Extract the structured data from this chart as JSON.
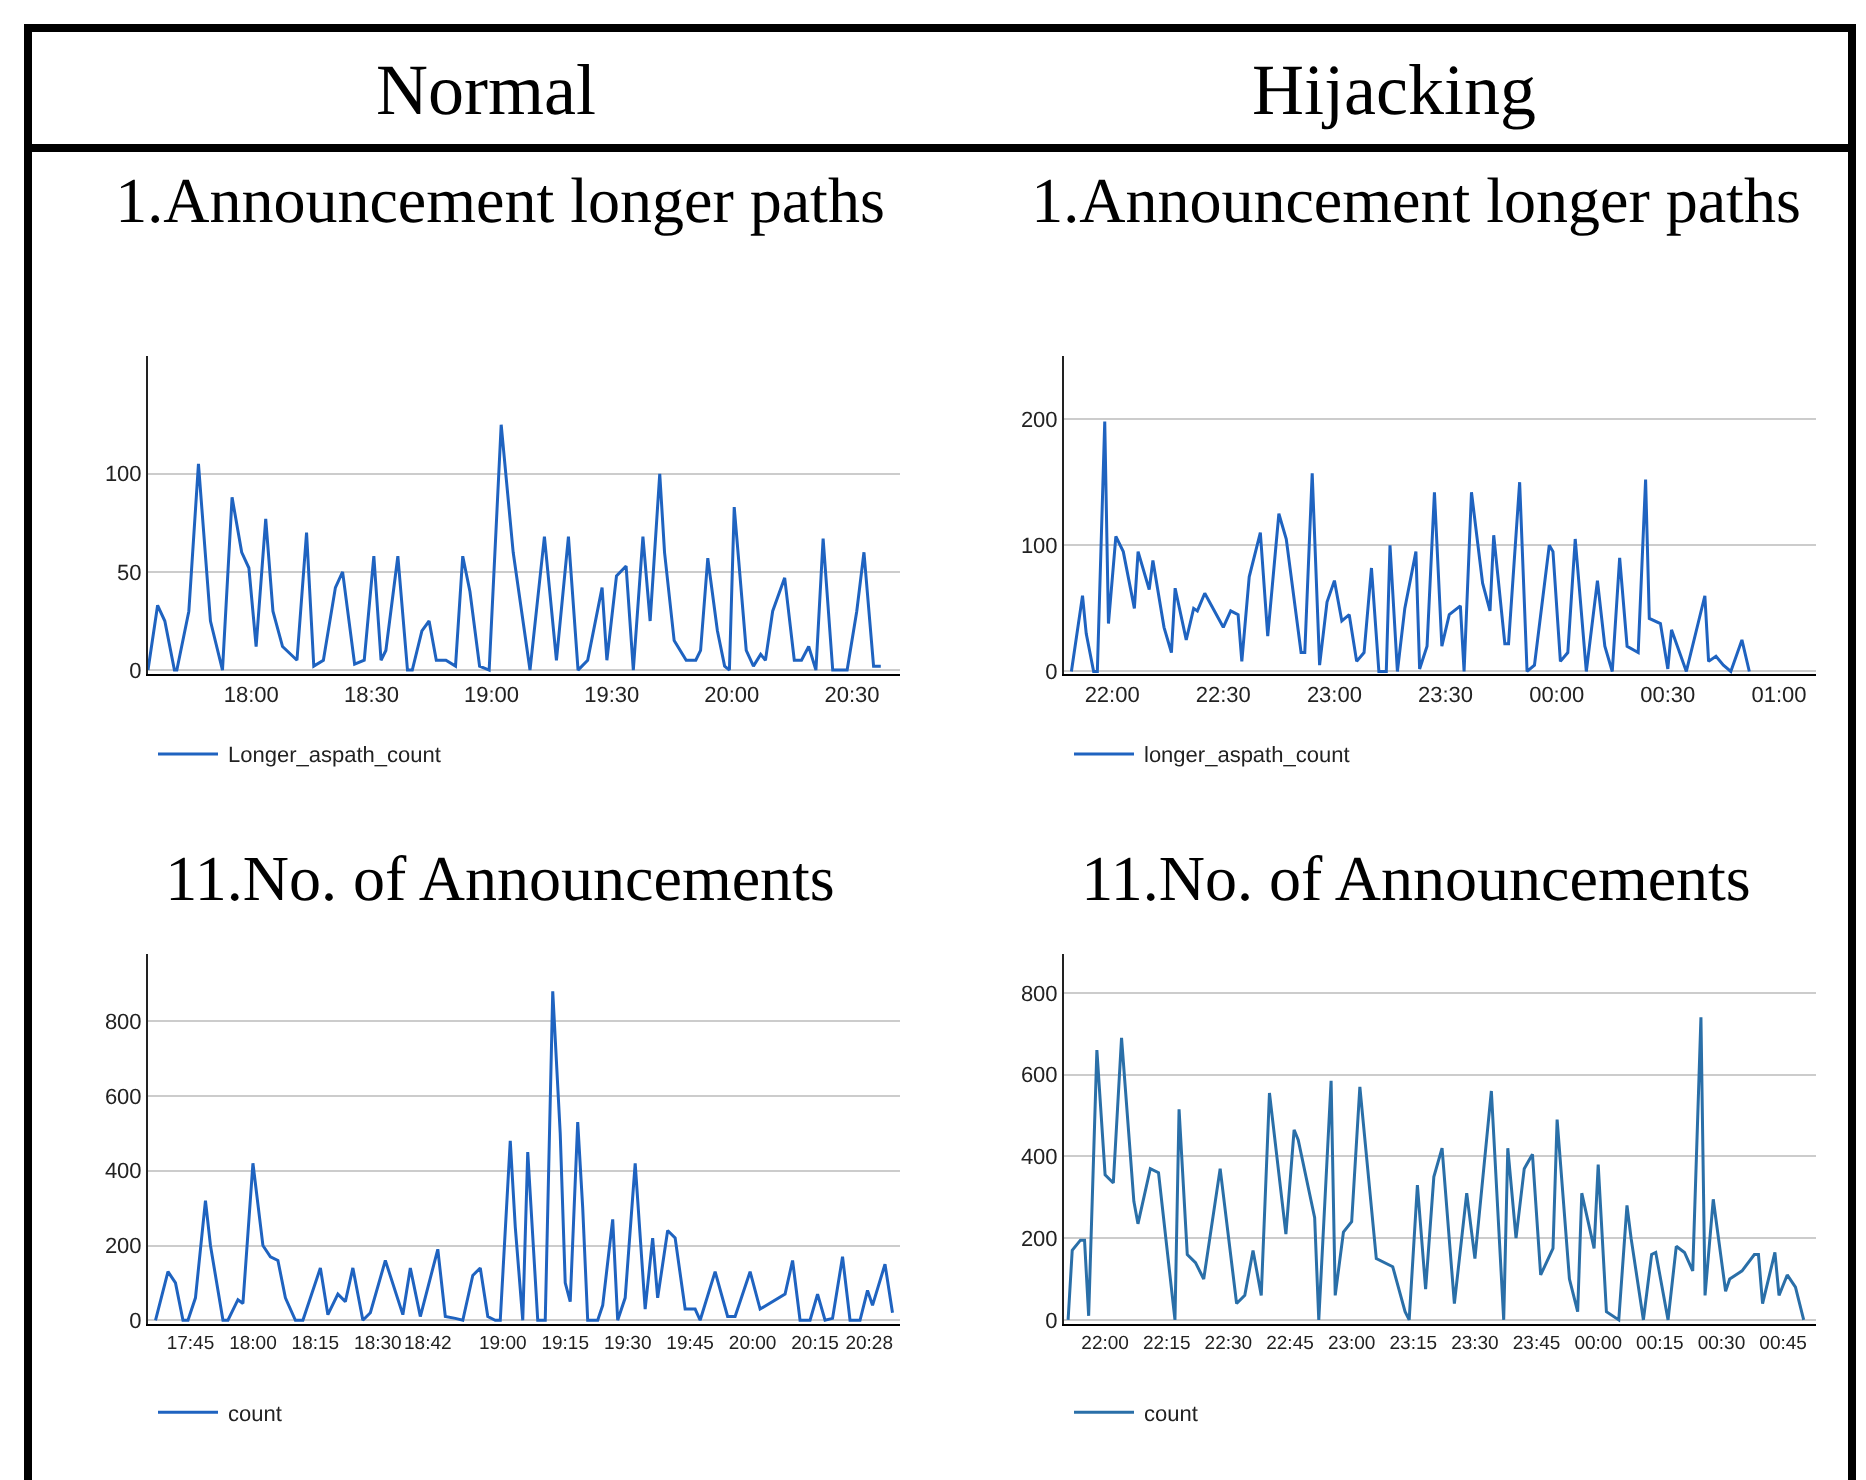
{
  "chart_data": [
    {
      "type": "line",
      "title": "1.Announcement longer paths",
      "annotations": [
        "Normal"
      ],
      "grid": "y",
      "legend": "bottom left",
      "xlim": [
        17.57,
        20.7
      ],
      "xticks": [
        {
          "value": 18,
          "label": "18:00"
        },
        {
          "value": 18.5,
          "label": "18:30"
        },
        {
          "value": 19,
          "label": "19:00"
        },
        {
          "value": 19.5,
          "label": "19:30"
        },
        {
          "value": 20,
          "label": "20:00"
        },
        {
          "value": 20.5,
          "label": "20:30"
        }
      ],
      "ylim": [
        -2,
        160
      ],
      "yticks": [
        0,
        50,
        100
      ],
      "series": [
        {
          "name": "Longer_aspath_count",
          "color": "#1f63c0",
          "x": [
            17.57,
            17.61,
            17.64,
            17.68,
            17.69,
            17.74,
            17.78,
            17.83,
            17.88,
            17.92,
            17.96,
            17.99,
            18.02,
            18.06,
            18.09,
            18.13,
            18.19,
            18.23,
            18.26,
            18.3,
            18.35,
            18.38,
            18.43,
            18.47,
            18.51,
            18.54,
            18.56,
            18.61,
            18.65,
            18.67,
            18.71,
            18.74,
            18.77,
            18.81,
            18.85,
            18.88,
            18.91,
            18.95,
            18.99,
            19.04,
            19.09,
            19.16,
            19.22,
            19.27,
            19.32,
            19.36,
            19.4,
            19.46,
            19.48,
            19.52,
            19.56,
            19.59,
            19.63,
            19.66,
            19.7,
            19.72,
            19.76,
            19.81,
            19.85,
            19.87,
            19.9,
            19.94,
            19.97,
            19.99,
            20.01,
            20.06,
            20.09,
            20.12,
            20.14,
            20.17,
            20.22,
            20.26,
            20.29,
            20.32,
            20.35,
            20.38,
            20.42,
            20.48,
            20.52,
            20.55,
            20.59,
            20.62
          ],
          "values": [
            0,
            33,
            25,
            0,
            0,
            30,
            105,
            25,
            0,
            88,
            60,
            52,
            12,
            77,
            30,
            12,
            5,
            70,
            2,
            5,
            42,
            50,
            3,
            5,
            58,
            5,
            10,
            58,
            0,
            0,
            20,
            25,
            5,
            5,
            2,
            58,
            40,
            2,
            0,
            125,
            60,
            0,
            68,
            5,
            68,
            0,
            5,
            42,
            5,
            48,
            53,
            0,
            68,
            25,
            100,
            60,
            15,
            5,
            5,
            10,
            57,
            20,
            2,
            0,
            83,
            10,
            2,
            8,
            5,
            30,
            47,
            5,
            5,
            12,
            0,
            67,
            0,
            0,
            30,
            60,
            2,
            2
          ]
        }
      ]
    },
    {
      "type": "line",
      "title": "1.Announcement longer paths",
      "annotations": [
        "Hijacking"
      ],
      "grid": "y",
      "legend": "bottom left",
      "xlim": [
        "--01-01T21:47",
        "--01-02T01:10"
      ],
      "xticks": [
        {
          "value": "--01-01T22:00",
          "label": "22:00"
        },
        {
          "value": "--01-01T22:30",
          "label": "22:30"
        },
        {
          "value": "--01-01T23:00",
          "label": "23:00"
        },
        {
          "value": "--01-01T23:30",
          "label": "23:30"
        },
        {
          "value": "--01-02T00:00",
          "label": "00:00"
        },
        {
          "value": "--01-02T00:30",
          "label": "00:30"
        },
        {
          "value": "--01-02T01:00",
          "label": "01:00"
        }
      ],
      "ylim": [
        -2,
        250
      ],
      "yticks": [
        0,
        100,
        200
      ],
      "series": [
        {
          "name": "longer_aspath_count",
          "color": "#1f63c0",
          "x": [
            "--01-01T21:49",
            "--01-01T21:52",
            "--01-01T21:53",
            "--01-01T21:55",
            "--01-01T21:56",
            "--01-01T21:58",
            "--01-01T21:59",
            "--01-01T22:01",
            "--01-01T22:03",
            "--01-01T22:06",
            "--01-01T22:07",
            "--01-01T22:10",
            "--01-01T22:11",
            "--01-01T22:14",
            "--01-01T22:16",
            "--01-01T22:17",
            "--01-01T22:20",
            "--01-01T22:22",
            "--01-01T22:23",
            "--01-01T22:25",
            "--01-01T22:30",
            "--01-01T22:32",
            "--01-01T22:34",
            "--01-01T22:35",
            "--01-01T22:37",
            "--01-01T22:40",
            "--01-01T22:42",
            "--01-01T22:45",
            "--01-01T22:47",
            "--01-01T22:51",
            "--01-01T22:52",
            "--01-01T22:54",
            "--01-01T22:56",
            "--01-01T22:58",
            "--01-01T23:00",
            "--01-01T23:02",
            "--01-01T23:04",
            "--01-01T23:06",
            "--01-01T23:08",
            "--01-01T23:10",
            "--01-01T23:12",
            "--01-01T23:14",
            "--01-01T23:15",
            "--01-01T23:17",
            "--01-01T23:19",
            "--01-01T23:22",
            "--01-01T23:23",
            "--01-01T23:25",
            "--01-01T23:27",
            "--01-01T23:29",
            "--01-01T23:31",
            "--01-01T23:34",
            "--01-01T23:35",
            "--01-01T23:37",
            "--01-01T23:40",
            "--01-01T23:42",
            "--01-01T23:43",
            "--01-01T23:46",
            "--01-01T23:47",
            "--01-01T23:50",
            "--01-01T23:52",
            "--01-01T23:54",
            "--01-01T23:58",
            "--01-01T23:59",
            "--01-02T00:01",
            "--01-02T00:03",
            "--01-02T00:05",
            "--01-02T00:08",
            "--01-02T00:11",
            "--01-02T00:13",
            "--01-02T00:15",
            "--01-02T00:17",
            "--01-02T00:19",
            "--01-02T00:22",
            "--01-02T00:24",
            "--01-02T00:25",
            "--01-02T00:28",
            "--01-02T00:30",
            "--01-02T00:31",
            "--01-02T00:35",
            "--01-02T00:40",
            "--01-02T00:41",
            "--01-02T00:43",
            "--01-02T00:45",
            "--01-02T00:47",
            "--01-02T00:50",
            "--01-02T00:52"
          ],
          "values": [
            0,
            60,
            30,
            0,
            0,
            198,
            38,
            107,
            95,
            50,
            95,
            65,
            88,
            35,
            15,
            66,
            25,
            50,
            48,
            62,
            35,
            48,
            45,
            8,
            75,
            110,
            28,
            125,
            105,
            15,
            15,
            157,
            5,
            55,
            72,
            40,
            45,
            8,
            15,
            82,
            0,
            0,
            100,
            0,
            50,
            95,
            2,
            20,
            142,
            20,
            45,
            52,
            0,
            142,
            70,
            48,
            108,
            22,
            22,
            150,
            0,
            5,
            100,
            95,
            8,
            15,
            105,
            0,
            72,
            20,
            0,
            90,
            20,
            15,
            152,
            42,
            38,
            2,
            33,
            0,
            60,
            8,
            12,
            5,
            0,
            25,
            0
          ]
        }
      ]
    },
    {
      "type": "line",
      "title": "11.No. of Announcements",
      "grid": "y",
      "legend": "bottom left",
      "xlim": [
        17.58,
        20.59
      ],
      "xticks": [
        {
          "value": 17.75,
          "label": "17:45"
        },
        {
          "value": 18,
          "label": "18:00"
        },
        {
          "value": 18.25,
          "label": "18:15"
        },
        {
          "value": 18.5,
          "label": "18:30"
        },
        {
          "value": 18.7,
          "label": "18:42"
        },
        {
          "value": 19,
          "label": "19:00"
        },
        {
          "value": 19.25,
          "label": "19:15"
        },
        {
          "value": 19.5,
          "label": "19:30"
        },
        {
          "value": 19.75,
          "label": "19:45"
        },
        {
          "value": 20,
          "label": "20:00"
        },
        {
          "value": 20.25,
          "label": "20:15"
        },
        {
          "value": 20.4667,
          "label": "20:28"
        }
      ],
      "ylim": [
        -10,
        980
      ],
      "yticks": [
        0,
        200,
        400,
        600,
        800
      ],
      "series": [
        {
          "name": "count",
          "color": "#1f63c0",
          "x": [
            17.61,
            17.66,
            17.69,
            17.72,
            17.74,
            17.77,
            17.81,
            17.83,
            17.88,
            17.9,
            17.94,
            17.96,
            18,
            18.04,
            18.07,
            18.1,
            18.13,
            18.17,
            18.2,
            18.27,
            18.3,
            18.34,
            18.37,
            18.4,
            18.44,
            18.47,
            18.53,
            18.6,
            18.63,
            18.67,
            18.74,
            18.77,
            18.81,
            18.84,
            18.88,
            18.91,
            18.94,
            18.97,
            18.99,
            19.03,
            19.05,
            19.08,
            19.1,
            19.14,
            19.17,
            19.2,
            19.23,
            19.25,
            19.27,
            19.3,
            19.32,
            19.34,
            19.38,
            19.4,
            19.44,
            19.46,
            19.49,
            19.53,
            19.57,
            19.6,
            19.62,
            19.66,
            19.69,
            19.73,
            19.77,
            19.79,
            19.85,
            19.9,
            19.93,
            19.99,
            20.03,
            20.13,
            20.16,
            20.19,
            20.23,
            20.26,
            20.29,
            20.32,
            20.36,
            20.39,
            20.43,
            20.46,
            20.48,
            20.53,
            20.56
          ],
          "values": [
            0,
            130,
            100,
            0,
            0,
            60,
            320,
            200,
            0,
            0,
            55,
            45,
            420,
            200,
            170,
            160,
            60,
            0,
            0,
            140,
            15,
            70,
            50,
            140,
            0,
            20,
            160,
            15,
            140,
            10,
            190,
            10,
            5,
            0,
            120,
            140,
            10,
            0,
            0,
            480,
            250,
            0,
            450,
            0,
            0,
            880,
            500,
            100,
            50,
            530,
            300,
            0,
            0,
            40,
            270,
            0,
            60,
            420,
            30,
            220,
            60,
            240,
            220,
            30,
            30,
            0,
            130,
            10,
            10,
            130,
            30,
            70,
            160,
            0,
            0,
            70,
            0,
            5,
            170,
            0,
            0,
            80,
            40,
            150,
            20
          ]
        }
      ]
    },
    {
      "type": "line",
      "title": "11.No. of Announcements",
      "grid": "y",
      "legend": "bottom left",
      "xlim": [
        "--01-01T21:50",
        "--01-02T00:53"
      ],
      "xticks": [
        {
          "value": "--01-01T22:00",
          "label": "22:00"
        },
        {
          "value": "--01-01T22:15",
          "label": "22:15"
        },
        {
          "value": "--01-01T22:30",
          "label": "22:30"
        },
        {
          "value": "--01-01T22:45",
          "label": "22:45"
        },
        {
          "value": "--01-01T23:00",
          "label": "23:00"
        },
        {
          "value": "--01-01T23:15",
          "label": "23:15"
        },
        {
          "value": "--01-01T23:30",
          "label": "23:30"
        },
        {
          "value": "--01-01T23:45",
          "label": "23:45"
        },
        {
          "value": "--01-02T00:00",
          "label": "00:00"
        },
        {
          "value": "--01-02T00:15",
          "label": "00:15"
        },
        {
          "value": "--01-02T00:30",
          "label": "00:30"
        },
        {
          "value": "--01-02T00:45",
          "label": "00:45"
        }
      ],
      "ylim": [
        -10,
        895
      ],
      "yticks": [
        0,
        200,
        400,
        600,
        800
      ],
      "series": [
        {
          "name": "count",
          "color": "#2a6fa8",
          "x": [
            "--01-01T21:51",
            "--01-01T21:52",
            "--01-01T21:54",
            "--01-01T21:55",
            "--01-01T21:56",
            "--01-01T21:58",
            "--01-01T22:00",
            "--01-01T22:02",
            "--01-01T22:04",
            "--01-01T22:07",
            "--01-01T22:08",
            "--01-01T22:11",
            "--01-01T22:13",
            "--01-01T22:17",
            "--01-01T22:18",
            "--01-01T22:20",
            "--01-01T22:22",
            "--01-01T22:24",
            "--01-01T22:28",
            "--01-01T22:32",
            "--01-01T22:34",
            "--01-01T22:36",
            "--01-01T22:38",
            "--01-01T22:40",
            "--01-01T22:44",
            "--01-01T22:46",
            "--01-01T22:47",
            "--01-01T22:51",
            "--01-01T22:52",
            "--01-01T22:55",
            "--01-01T22:56",
            "--01-01T22:58",
            "--01-01T23:00",
            "--01-01T23:02",
            "--01-01T23:06",
            "--01-01T23:10",
            "--01-01T23:13",
            "--01-01T23:14",
            "--01-01T23:16",
            "--01-01T23:18",
            "--01-01T23:20",
            "--01-01T23:22",
            "--01-01T23:25",
            "--01-01T23:28",
            "--01-01T23:30",
            "--01-01T23:34",
            "--01-01T23:37",
            "--01-01T23:38",
            "--01-01T23:40",
            "--01-01T23:42",
            "--01-01T23:44",
            "--01-01T23:46",
            "--01-01T23:49",
            "--01-01T23:50",
            "--01-01T23:53",
            "--01-01T23:55",
            "--01-01T23:56",
            "--01-01T23:59",
            "--01-02T00:00",
            "--01-02T00:02",
            "--01-02T00:05",
            "--01-02T00:07",
            "--01-02T00:08",
            "--01-02T00:11",
            "--01-02T00:13",
            "--01-02T00:14",
            "--01-02T00:17",
            "--01-02T00:19",
            "--01-02T00:21",
            "--01-02T00:23",
            "--01-02T00:25",
            "--01-02T00:26",
            "--01-02T00:28",
            "--01-02T00:31",
            "--01-02T00:32",
            "--01-02T00:35",
            "--01-02T00:38",
            "--01-02T00:39",
            "--01-02T00:40",
            "--01-02T00:43",
            "--01-02T00:44",
            "--01-02T00:46",
            "--01-02T00:48",
            "--01-02T00:50"
          ],
          "values": [
            0,
            170,
            195,
            195,
            10,
            660,
            355,
            335,
            690,
            290,
            235,
            370,
            360,
            0,
            515,
            160,
            140,
            100,
            370,
            40,
            60,
            170,
            60,
            555,
            210,
            465,
            440,
            250,
            0,
            585,
            60,
            215,
            240,
            570,
            150,
            130,
            20,
            0,
            330,
            75,
            350,
            420,
            40,
            310,
            150,
            560,
            0,
            420,
            200,
            370,
            405,
            110,
            175,
            490,
            100,
            20,
            310,
            175,
            380,
            20,
            0,
            280,
            200,
            0,
            160,
            165,
            0,
            180,
            165,
            120,
            740,
            60,
            295,
            70,
            100,
            120,
            160,
            160,
            40,
            165,
            60,
            110,
            80,
            0
          ]
        }
      ]
    }
  ]
}
